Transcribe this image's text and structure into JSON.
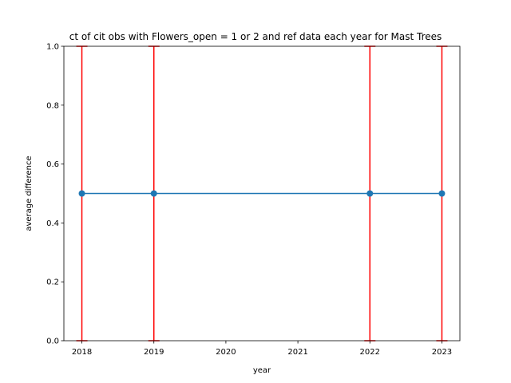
{
  "chart_data": {
    "type": "line",
    "title": "ct of cit obs with Flowers_open = 1 or 2 and ref data each year for Mast Trees",
    "xlabel": "year",
    "ylabel": "average difference",
    "xlim": [
      2017.75,
      2023.25
    ],
    "ylim": [
      0.0,
      1.0
    ],
    "x_ticks": [
      2018,
      2019,
      2020,
      2021,
      2022,
      2023
    ],
    "x_tick_labels": [
      "2018",
      "2019",
      "2020",
      "2021",
      "2022",
      "2023"
    ],
    "y_ticks": [
      0.0,
      0.2,
      0.4,
      0.6,
      0.8,
      1.0
    ],
    "y_tick_labels": [
      "0.0",
      "0.2",
      "0.4",
      "0.6",
      "0.8",
      "1.0"
    ],
    "grid": false,
    "series": [
      {
        "x": [
          2018,
          2019,
          2022,
          2023
        ],
        "y": [
          0.5,
          0.5,
          0.5,
          0.5
        ],
        "error_low": [
          0.0,
          0.0,
          0.0,
          0.0
        ],
        "error_high": [
          1.0,
          1.0,
          1.0,
          1.0
        ],
        "color": "#1f77b4",
        "error_color": "#ff0000",
        "marker": "circle"
      }
    ]
  }
}
